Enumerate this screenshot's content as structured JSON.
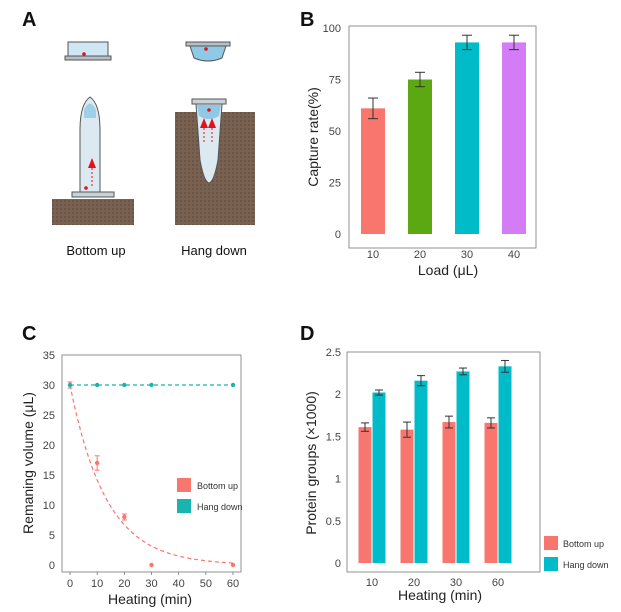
{
  "panel_letters": {
    "a": "A",
    "b": "B",
    "c": "C",
    "d": "D"
  },
  "panel_a": {
    "left_label": "Bottom up",
    "right_label": "Hang down",
    "colors": {
      "block": "#7a6253",
      "liquid": "#8ecae6",
      "arrow": "#e0121b",
      "tube": "#d9e7ef",
      "cap": "#c9d2d8"
    }
  },
  "chart_data": [
    {
      "id": "B",
      "type": "bar",
      "title": "",
      "xlabel": "Load (μL)",
      "ylabel": "Capture rate(%)",
      "categories": [
        "10",
        "20",
        "30",
        "40"
      ],
      "values": [
        61,
        75,
        93,
        93
      ],
      "errors": [
        5,
        3.5,
        3.5,
        3.5
      ],
      "colors": [
        "#f8766d",
        "#5ba813",
        "#00bcc8",
        "#d37cf5"
      ],
      "ylim": [
        0,
        100
      ],
      "yticks": [
        0,
        25,
        50,
        75,
        100
      ],
      "ytick_labels": [
        "0",
        "25",
        "50",
        "75",
        "100"
      ]
    },
    {
      "id": "C",
      "type": "line",
      "title": "",
      "xlabel": "Heating (min)",
      "ylabel": "Remaning volume (μL)",
      "xlim": [
        0,
        60
      ],
      "ylim": [
        0,
        35
      ],
      "xticks": [
        "0",
        "10",
        "20",
        "30",
        "40",
        "50",
        "60"
      ],
      "yticks": [
        "0",
        "5",
        "10",
        "15",
        "20",
        "25",
        "30",
        "35"
      ],
      "legend_position": "right-middle",
      "series": [
        {
          "name": "Bottom up",
          "color": "#f8766d",
          "x": [
            0,
            10,
            20,
            30,
            60
          ],
          "y": [
            30,
            17,
            8,
            0,
            0
          ],
          "err": [
            0.5,
            1.2,
            0.5,
            0,
            0
          ],
          "style": "dashed-decay"
        },
        {
          "name": "Hang down",
          "color": "#18b5b0",
          "x": [
            0,
            10,
            20,
            30,
            60
          ],
          "y": [
            30,
            30,
            30,
            30,
            30
          ],
          "err": [
            0,
            0,
            0,
            0,
            0
          ],
          "style": "dashed-flat"
        }
      ]
    },
    {
      "id": "D",
      "type": "bar",
      "title": "",
      "xlabel": "Heating (min)",
      "ylabel": "Protein groups (×1000)",
      "categories": [
        "10",
        "20",
        "30",
        "60"
      ],
      "ylim": [
        0,
        2.5
      ],
      "yticks": [
        "0",
        "0.5",
        "1",
        "1.5",
        "2",
        "2.5"
      ],
      "legend_position": "bottom-right",
      "series": [
        {
          "name": "Bottom up",
          "color": "#f8766d",
          "values": [
            1.61,
            1.58,
            1.67,
            1.66
          ],
          "errors": [
            0.05,
            0.09,
            0.07,
            0.06
          ]
        },
        {
          "name": "Hang down",
          "color": "#00bcc8",
          "values": [
            2.02,
            2.16,
            2.27,
            2.33
          ],
          "errors": [
            0.03,
            0.06,
            0.04,
            0.07
          ]
        }
      ]
    }
  ]
}
